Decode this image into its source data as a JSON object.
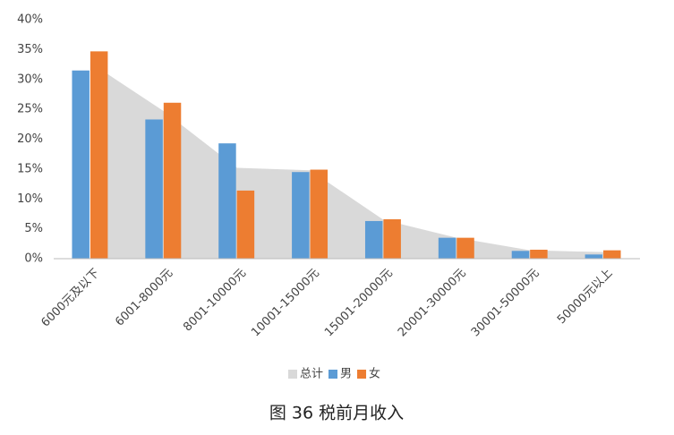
{
  "chart_data": {
    "type": "bar",
    "title": "图 36 税前月收入",
    "categories": [
      "6000元及以下",
      "6001-8000元",
      "8001-10000元",
      "10001-15000元",
      "15001-20000元",
      "20001-30000元",
      "30001-50000元",
      "50000元以上"
    ],
    "series": [
      {
        "name": "总计",
        "type": "area",
        "color": "#d9d9d9",
        "values": [
          32.8,
          24.7,
          15.2,
          14.8,
          6.5,
          3.5,
          1.4,
          1.1
        ]
      },
      {
        "name": "男",
        "type": "bar",
        "color": "#5b9bd5",
        "values": [
          31.5,
          23.3,
          19.3,
          14.5,
          6.3,
          3.5,
          1.3,
          0.7
        ]
      },
      {
        "name": "女",
        "type": "bar",
        "color": "#ed7d31",
        "values": [
          34.7,
          26.1,
          11.4,
          14.9,
          6.6,
          3.5,
          1.5,
          1.4
        ]
      }
    ],
    "ylim": [
      0,
      40
    ],
    "yticks": [
      {
        "value": 0,
        "label": "0%"
      },
      {
        "value": 5,
        "label": "5%"
      },
      {
        "value": 10,
        "label": "10%"
      },
      {
        "value": 15,
        "label": "15%"
      },
      {
        "value": 20,
        "label": "20%"
      },
      {
        "value": 25,
        "label": "25%"
      },
      {
        "value": 30,
        "label": "30%"
      },
      {
        "value": 35,
        "label": "35%"
      },
      {
        "value": 40,
        "label": "40%"
      }
    ],
    "grid": false,
    "legend": "bottom"
  }
}
